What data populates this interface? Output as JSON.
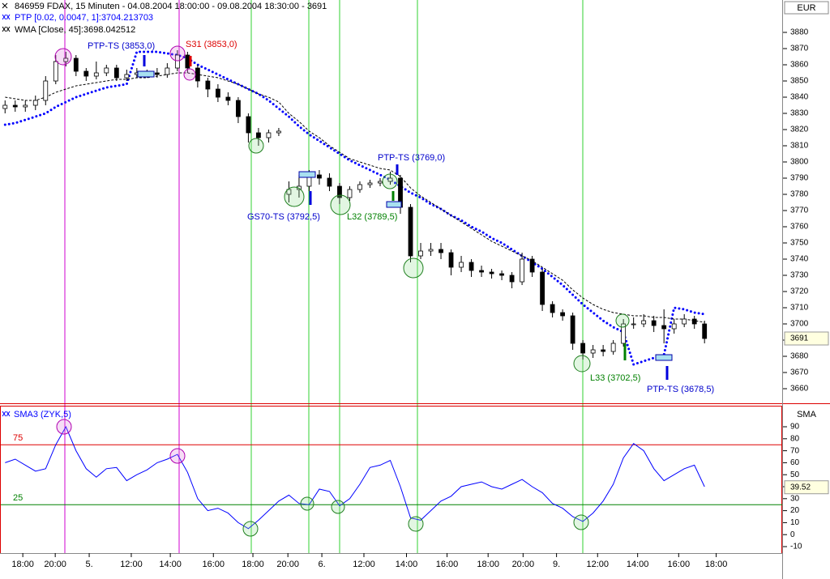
{
  "chart_data": [
    {
      "type": "candlestick",
      "title": "846959  FDAX, 15 Minuten - 04.08.2004 18:00:00 - 09.08.2004 18:30:00 - 3691",
      "y_unit": "EUR",
      "up_color": "#ffffff",
      "down_color": "#000000",
      "x": [
        1,
        3,
        5,
        7,
        9,
        11,
        13,
        15,
        17,
        19,
        21,
        23,
        25,
        27,
        29,
        31,
        33,
        35,
        37,
        39,
        41,
        43,
        45,
        47,
        49,
        51,
        53,
        55,
        57,
        59,
        61,
        63,
        65,
        67,
        69,
        71,
        73,
        75,
        77,
        79,
        81,
        83,
        85,
        87,
        89,
        91,
        93,
        95,
        97,
        99,
        101,
        103,
        105,
        107,
        109,
        111,
        113,
        115,
        117,
        119,
        121,
        123,
        125,
        127,
        129,
        131,
        133,
        135,
        137,
        139
      ],
      "open": [
        3833,
        3835,
        3834,
        3835,
        3838,
        3850,
        3862,
        3864,
        3856,
        3853,
        3855,
        3858,
        3852,
        3854,
        3855,
        3855,
        3854,
        3858,
        3866,
        3858,
        3850,
        3845,
        3840,
        3838,
        3828,
        3818,
        3815,
        3818,
        3780,
        3783,
        3785,
        3792,
        3790,
        3785,
        3778,
        3783,
        3786,
        3787,
        3788,
        3790,
        3772,
        3742,
        3745,
        3746,
        3744,
        3735,
        3738,
        3733,
        3732,
        3731,
        3730,
        3726,
        3740,
        3732,
        3712,
        3707,
        3705,
        3688,
        3682,
        3684,
        3683,
        3688,
        3700,
        3700,
        3702,
        3699,
        3697,
        3700,
        3703,
        3700
      ],
      "high": [
        3838,
        3838,
        3838,
        3841,
        3853,
        3866,
        3868,
        3866,
        3858,
        3862,
        3860,
        3860,
        3857,
        3858,
        3857,
        3858,
        3861,
        3869,
        3868,
        3860,
        3852,
        3848,
        3843,
        3840,
        3830,
        3821,
        3820,
        3821,
        3788,
        3792,
        3795,
        3795,
        3793,
        3787,
        3785,
        3788,
        3789,
        3790,
        3794,
        3792,
        3774,
        3750,
        3750,
        3750,
        3746,
        3742,
        3740,
        3736,
        3734,
        3733,
        3732,
        3744,
        3742,
        3734,
        3714,
        3709,
        3707,
        3690,
        3687,
        3687,
        3690,
        3703,
        3704,
        3706,
        3705,
        3709,
        3703,
        3706,
        3705,
        3702
      ],
      "low": [
        3830,
        3831,
        3831,
        3832,
        3835,
        3848,
        3859,
        3853,
        3850,
        3851,
        3853,
        3850,
        3850,
        3852,
        3852,
        3852,
        3852,
        3856,
        3855,
        3846,
        3840,
        3837,
        3835,
        3824,
        3812,
        3810,
        3812,
        3816,
        3775,
        3778,
        3782,
        3786,
        3782,
        3774,
        3776,
        3781,
        3784,
        3785,
        3786,
        3768,
        3738,
        3740,
        3742,
        3740,
        3730,
        3732,
        3729,
        3729,
        3728,
        3727,
        3722,
        3724,
        3729,
        3708,
        3704,
        3702,
        3684,
        3678,
        3679,
        3680,
        3681,
        3686,
        3697,
        3698,
        3695,
        3688,
        3694,
        3698,
        3697,
        3688
      ],
      "close": [
        3835,
        3834,
        3835,
        3838,
        3850,
        3862,
        3864,
        3856,
        3853,
        3855,
        3858,
        3852,
        3854,
        3855,
        3855,
        3854,
        3858,
        3866,
        3858,
        3850,
        3845,
        3840,
        3838,
        3828,
        3818,
        3815,
        3818,
        3819,
        3783,
        3785,
        3792,
        3790,
        3785,
        3778,
        3783,
        3786,
        3787,
        3788,
        3790,
        3772,
        3742,
        3745,
        3746,
        3744,
        3735,
        3738,
        3733,
        3732,
        3731,
        3730,
        3726,
        3740,
        3732,
        3712,
        3707,
        3705,
        3688,
        3682,
        3684,
        3683,
        3688,
        3700,
        3700,
        3702,
        3699,
        3697,
        3700,
        3703,
        3700,
        3691
      ],
      "series": [
        {
          "name": "PTP [0.02, 0.0047, 1]:3704.213703",
          "color": "#0000ff",
          "style": "dotted",
          "values": [
            3823,
            3824,
            3826,
            3828,
            3830,
            3834,
            3837,
            3840,
            3842,
            3844,
            3846,
            3847,
            3848,
            3868,
            3868,
            3868,
            3867,
            3866,
            3864,
            3860,
            3857,
            3854,
            3851,
            3848,
            3845,
            3842,
            3838,
            3833,
            3828,
            3822,
            3817,
            3813,
            3809,
            3805,
            3801,
            3798,
            3795,
            3792,
            3789,
            3785,
            3781,
            3778,
            3774,
            3771,
            3767,
            3764,
            3760,
            3757,
            3753,
            3750,
            3746,
            3742,
            3738,
            3734,
            3729,
            3724,
            3718,
            3712,
            3707,
            3702,
            3698,
            3695,
            3675,
            3677,
            3679,
            3681,
            3710,
            3709,
            3707,
            3706
          ]
        },
        {
          "name": "WMA [Close, 45]:3698.042512",
          "color": "#000000",
          "style": "dashed",
          "values": [
            3840,
            3839,
            3838,
            3838,
            3840,
            3843,
            3845,
            3847,
            3848,
            3849,
            3850,
            3851,
            3851,
            3852,
            3852,
            3853,
            3854,
            3855,
            3855,
            3854,
            3853,
            3852,
            3850,
            3848,
            3845,
            3842,
            3840,
            3837,
            3830,
            3825,
            3819,
            3815,
            3810,
            3806,
            3802,
            3800,
            3798,
            3796,
            3795,
            3791,
            3784,
            3779,
            3775,
            3771,
            3767,
            3763,
            3759,
            3755,
            3751,
            3748,
            3745,
            3742,
            3739,
            3735,
            3731,
            3727,
            3721,
            3716,
            3712,
            3709,
            3707,
            3706,
            3705,
            3705,
            3704,
            3704,
            3703,
            3703,
            3702,
            3701
          ]
        }
      ],
      "xlim": [
        0,
        154
      ],
      "xticks": [
        {
          "value": 4.5,
          "label": "18:00"
        },
        {
          "value": 10.9,
          "label": "20:00"
        },
        {
          "value": 17.6,
          "label": "5."
        },
        {
          "value": 25.9,
          "label": "12:00"
        },
        {
          "value": 33.6,
          "label": "14:00"
        },
        {
          "value": 42.1,
          "label": "16:00"
        },
        {
          "value": 49.9,
          "label": "18:00"
        },
        {
          "value": 56.8,
          "label": "20:00"
        },
        {
          "value": 63.5,
          "label": "6."
        },
        {
          "value": 71.8,
          "label": "12:00"
        },
        {
          "value": 80.2,
          "label": "14:00"
        },
        {
          "value": 88.2,
          "label": "16:00"
        },
        {
          "value": 96.3,
          "label": "18:00"
        },
        {
          "value": 103.2,
          "label": "20:00"
        },
        {
          "value": 109.8,
          "label": "9."
        },
        {
          "value": 117.9,
          "label": "12:00"
        },
        {
          "value": 125.8,
          "label": "14:00"
        },
        {
          "value": 133.9,
          "label": "16:00"
        },
        {
          "value": 141.3,
          "label": "18:00"
        }
      ],
      "ylim": [
        3651.5,
        3891
      ],
      "yticks": [
        3660,
        3670,
        3680,
        3690,
        3700,
        3710,
        3720,
        3730,
        3740,
        3750,
        3760,
        3770,
        3780,
        3790,
        3800,
        3810,
        3820,
        3830,
        3840,
        3850,
        3860,
        3870,
        3880
      ],
      "last_price": 3691,
      "annotations": [
        {
          "text": "PTP-TS (3853,0)",
          "color": "#0000cc"
        },
        {
          "text": "S31 (3853,0)",
          "color": "#dd0000"
        },
        {
          "text": "PTP-TS (3769,0)",
          "color": "#0000cc"
        },
        {
          "text": "GS70-TS (3792,5)",
          "color": "#0000cc"
        },
        {
          "text": "L32 (3789,5)",
          "color": "#008000"
        },
        {
          "text": "L33 (3702,5)",
          "color": "#008000"
        },
        {
          "text": "PTP-TS (3678,5)",
          "color": "#0000cc"
        }
      ]
    },
    {
      "type": "line",
      "y_unit": "SMA",
      "x": [
        1,
        3,
        5,
        7,
        9,
        11,
        13,
        15,
        17,
        19,
        21,
        23,
        25,
        27,
        29,
        31,
        33,
        35,
        37,
        39,
        41,
        43,
        45,
        47,
        49,
        51,
        53,
        55,
        57,
        59,
        61,
        63,
        65,
        67,
        69,
        71,
        73,
        75,
        77,
        79,
        81,
        83,
        85,
        87,
        89,
        91,
        93,
        95,
        97,
        99,
        101,
        103,
        105,
        107,
        109,
        111,
        113,
        115,
        117,
        119,
        121,
        123,
        125,
        127,
        129,
        131,
        133,
        135,
        137,
        139
      ],
      "series": [
        {
          "name": "SMA3 (ZYK,5)",
          "color": "#0000ff",
          "values": [
            60,
            63,
            58,
            53,
            55,
            75,
            90,
            70,
            55,
            48,
            55,
            56,
            45,
            50,
            54,
            60,
            63,
            67,
            52,
            30,
            20,
            22,
            18,
            10,
            5,
            12,
            20,
            28,
            33,
            26,
            25,
            38,
            36,
            24,
            30,
            42,
            56,
            58,
            62,
            40,
            14,
            12,
            20,
            28,
            32,
            40,
            42,
            44,
            40,
            38,
            42,
            46,
            40,
            35,
            26,
            22,
            15,
            11,
            18,
            28,
            42,
            64,
            76,
            70,
            55,
            45,
            50,
            55,
            58,
            40
          ]
        }
      ],
      "xlim": [
        0,
        154
      ],
      "ylim": [
        -15.4,
        106.9
      ],
      "yticks": [
        -10,
        0,
        10,
        20,
        30,
        40,
        50,
        60,
        70,
        80,
        90
      ],
      "levels": [
        {
          "value": 75,
          "color": "#dd0000"
        },
        {
          "value": 25,
          "color": "#008000"
        }
      ],
      "last_value": 39.52
    }
  ]
}
